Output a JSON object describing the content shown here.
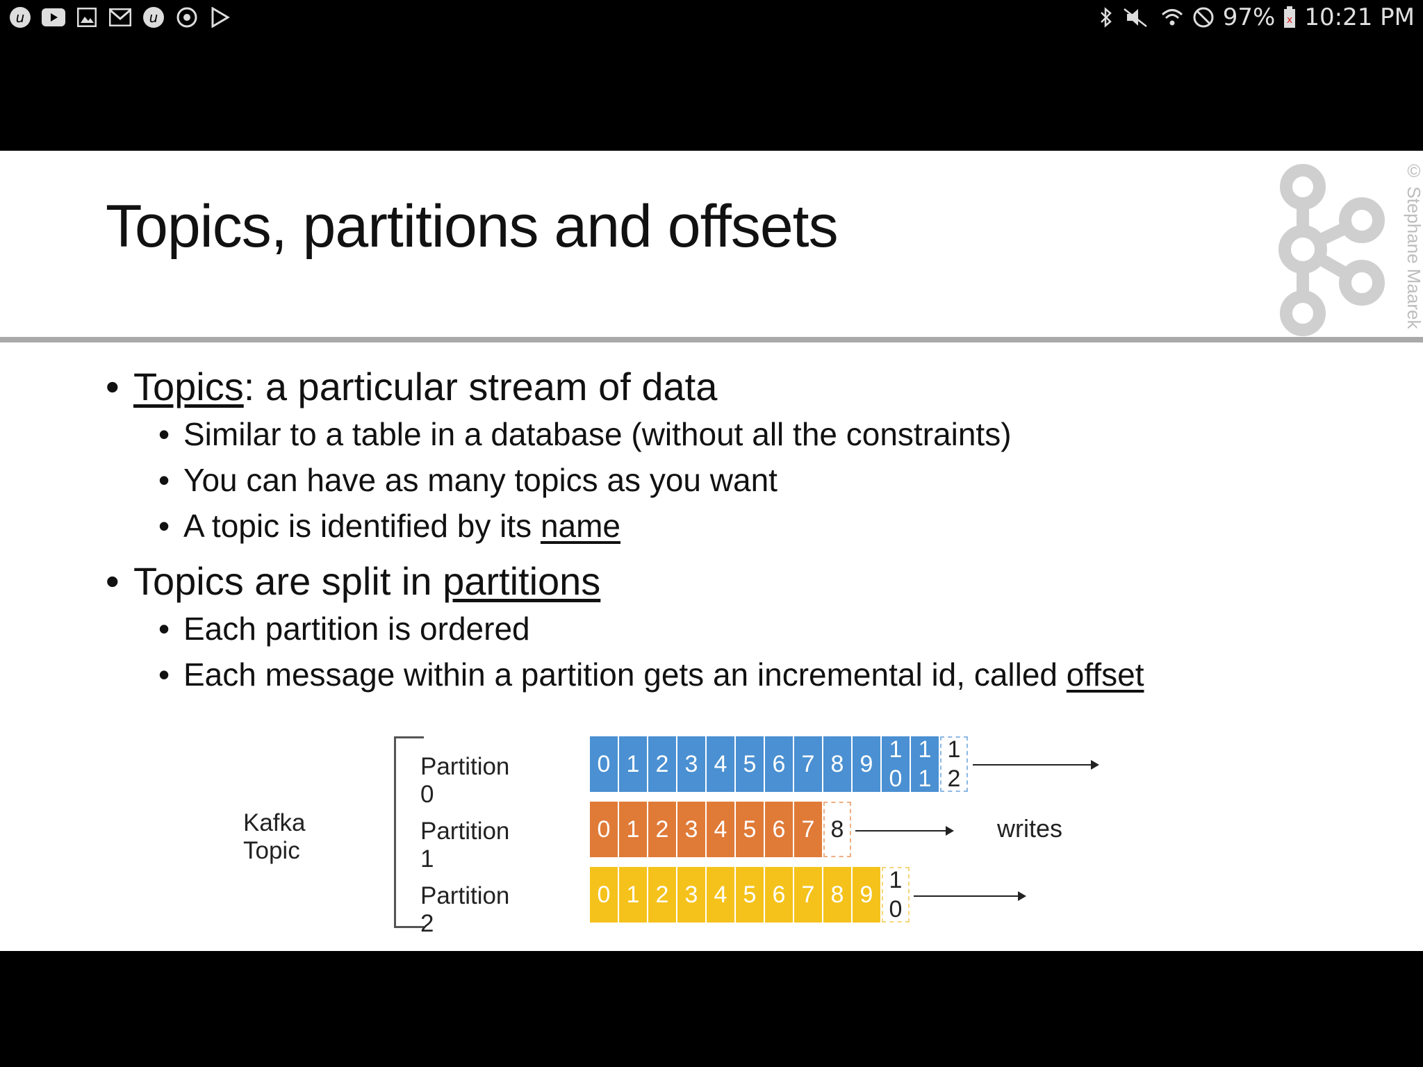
{
  "status_bar": {
    "battery": "97%",
    "time": "10:21 PM",
    "notification_icons": [
      "udemy-icon",
      "youtube-icon",
      "gallery-icon",
      "gmail-icon",
      "udemy-icon",
      "sync-icon",
      "play-store-icon"
    ],
    "system_icons": [
      "bluetooth-icon",
      "mute-icon",
      "wifi-icon",
      "do-not-disturb-icon",
      "battery-icon"
    ]
  },
  "slide": {
    "title": "Topics, partitions and offsets",
    "copyright": "© Stephane Maarek",
    "bullets": {
      "b1_link": "Topics",
      "b1_rest": ": a particular stream of data",
      "b1_sub1": "Similar to a table in a database (without all the constraints)",
      "b1_sub2": "You can have as many topics as you want",
      "b1_sub3_pre": "A topic is identified by its ",
      "b1_sub3_link": "name",
      "b2_pre": "Topics are split in ",
      "b2_link": "partitions",
      "b2_sub1": "Each partition is ordered",
      "b2_sub2_pre": "Each message within a partition gets an incremental id, called ",
      "b2_sub2_link": "offset"
    },
    "diagram": {
      "topic_label": "Kafka Topic",
      "writes_label": "writes",
      "partitions": [
        {
          "label": "Partition 0",
          "color": "#4a90d2",
          "offsets": [
            "0",
            "1",
            "2",
            "3",
            "4",
            "5",
            "6",
            "7",
            "8",
            "9",
            "1\n0",
            "1\n1"
          ],
          "next": "1\n2"
        },
        {
          "label": "Partition 1",
          "color": "#e07a37",
          "offsets": [
            "0",
            "1",
            "2",
            "3",
            "4",
            "5",
            "6",
            "7"
          ],
          "next": "8"
        },
        {
          "label": "Partition 2",
          "color": "#f5c21b",
          "offsets": [
            "0",
            "1",
            "2",
            "3",
            "4",
            "5",
            "6",
            "7",
            "8",
            "9"
          ],
          "next": "1\n0"
        }
      ]
    }
  }
}
